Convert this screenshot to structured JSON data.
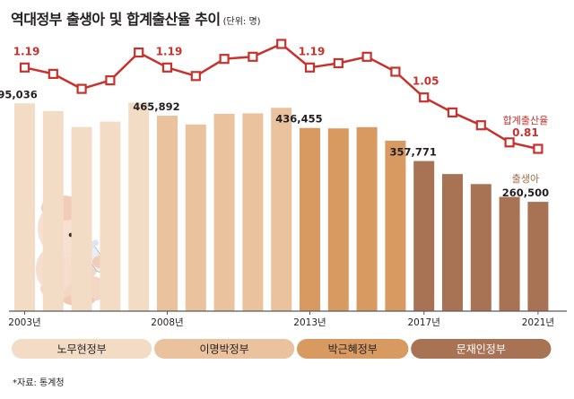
{
  "header": {
    "title": "역대정부 출생아 및 합계출산율 추이",
    "unit": "(단위: 명)"
  },
  "chart_data": {
    "type": "bar",
    "categories": [
      "2003",
      "2004",
      "2005",
      "2006",
      "2007",
      "2008",
      "2009",
      "2010",
      "2011",
      "2012",
      "2013",
      "2014",
      "2015",
      "2016",
      "2017",
      "2018",
      "2019",
      "2020",
      "2021"
    ],
    "x_tick_labels": [
      {
        "index": 0,
        "label": "2003년"
      },
      {
        "index": 5,
        "label": "2008년"
      },
      {
        "index": 10,
        "label": "2013년"
      },
      {
        "index": 14,
        "label": "2017년"
      },
      {
        "index": 18,
        "label": "2021년"
      }
    ],
    "series": [
      {
        "name": "출생아",
        "values": [
          495036,
          477000,
          438700,
          451800,
          496800,
          465892,
          444800,
          470200,
          471300,
          484600,
          436455,
          435400,
          438400,
          406200,
          357771,
          326800,
          302700,
          272300,
          260500
        ]
      },
      {
        "name": "합계출산율",
        "type": "line",
        "values": [
          1.19,
          1.16,
          1.09,
          1.13,
          1.26,
          1.19,
          1.15,
          1.23,
          1.24,
          1.3,
          1.19,
          1.21,
          1.24,
          1.17,
          1.05,
          0.98,
          0.92,
          0.84,
          0.81
        ]
      }
    ],
    "bar_labels": [
      {
        "index": 0,
        "text": "495,036"
      },
      {
        "index": 5,
        "text": "465,892"
      },
      {
        "index": 10,
        "text": "436,455"
      },
      {
        "index": 14,
        "text": "357,771"
      },
      {
        "index": 18,
        "text": "260,500"
      }
    ],
    "line_labels": [
      {
        "index": 0,
        "text": "1.19"
      },
      {
        "index": 5,
        "text": "1.19"
      },
      {
        "index": 10,
        "text": "1.19"
      },
      {
        "index": 14,
        "text": "1.05"
      },
      {
        "index": 18,
        "text": "0.81"
      }
    ],
    "series_labels": {
      "line": "합계출산율",
      "bar": "출생아"
    },
    "governments": [
      {
        "name": "노무현정부",
        "start": 0,
        "end": 4
      },
      {
        "name": "이명박정부",
        "start": 5,
        "end": 9
      },
      {
        "name": "박근혜정부",
        "start": 10,
        "end": 13
      },
      {
        "name": "문재인정부",
        "start": 14,
        "end": 18
      }
    ],
    "bar_ylim": [
      0,
      500000
    ],
    "line_ylim": [
      0.5,
      1.35
    ],
    "colors": {
      "gov": [
        "#f3dcc6",
        "#ebc29e",
        "#d99a61",
        "#a87355"
      ],
      "line": "#c8312c",
      "line_label": "#c8312c",
      "baseline": "#5a5a5a"
    }
  },
  "source": "*자료: 통계청"
}
